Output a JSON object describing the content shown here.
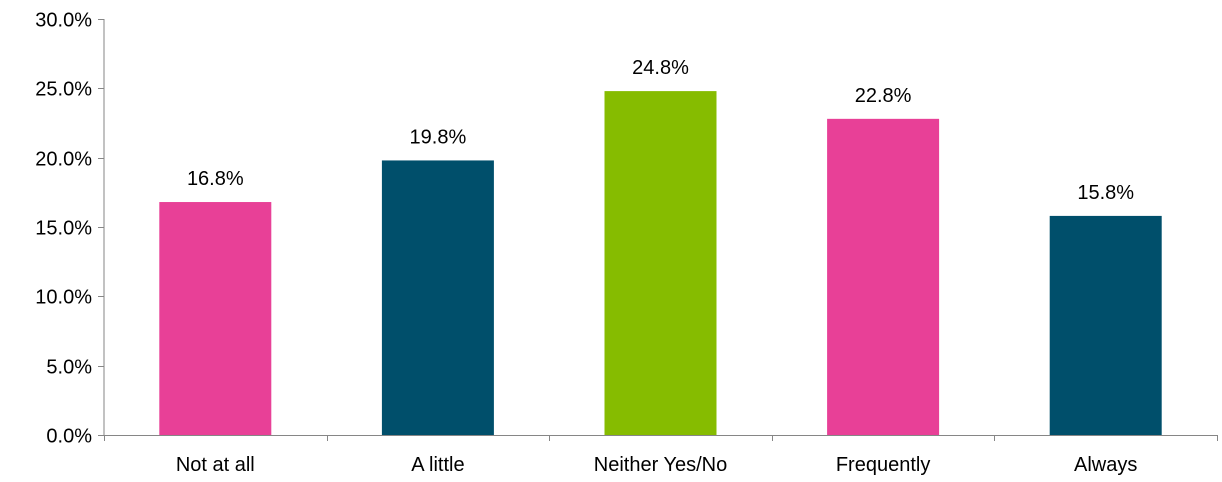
{
  "chart_data": {
    "type": "bar",
    "title": "",
    "xlabel": "",
    "ylabel": "",
    "categories": [
      "Not at all",
      "A little",
      "Neither Yes/No",
      "Frequently",
      "Always"
    ],
    "values": [
      16.8,
      19.8,
      24.8,
      22.8,
      15.8
    ],
    "data_labels": [
      "16.8%",
      "19.8%",
      "24.8%",
      "22.8%",
      "15.8%"
    ],
    "bar_colors": [
      "#e84097",
      "#004f6b",
      "#86bc00",
      "#e84097",
      "#004f6b"
    ],
    "ylim": [
      0,
      30
    ],
    "yticks": [
      0,
      5,
      10,
      15,
      20,
      25,
      30
    ],
    "ytick_labels": [
      "0.0%",
      "5.0%",
      "10.0%",
      "15.0%",
      "20.0%",
      "25.0%",
      "30.0%"
    ],
    "grid": false,
    "legend": "none",
    "axis_color": "#868686"
  }
}
